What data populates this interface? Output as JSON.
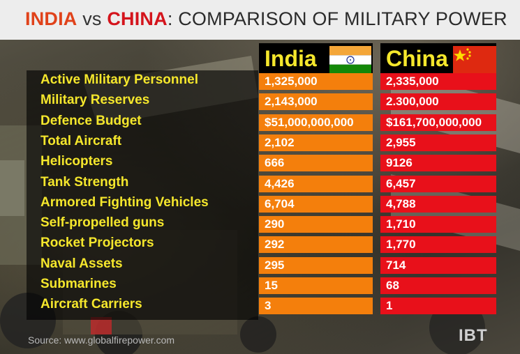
{
  "title": {
    "country1": "INDIA",
    "vs": " vs ",
    "country2": "CHINA",
    "colon": ":",
    "subtitle": " COMPARISON OF MILITARY POWER"
  },
  "columns": {
    "india": "India",
    "china": "China"
  },
  "colors": {
    "india_cell": "#f47f0c",
    "china_cell": "#e8101a",
    "label": "#f5e72c"
  },
  "rows": [
    {
      "label": "Active Military Personnel",
      "india": "1,325,000",
      "china": "2,335,000"
    },
    {
      "label": "Military Reserves",
      "india": "2,143,000",
      "china": "2.300,000"
    },
    {
      "label": "Defence Budget",
      "india": "$51,000,000,000",
      "china": "$161,700,000,000"
    },
    {
      "label": "Total Aircraft",
      "india": "2,102",
      "china": "2,955"
    },
    {
      "label": "Helicopters",
      "india": "666",
      "china": "9126"
    },
    {
      "label": "Tank Strength",
      "india": "4,426",
      "china": "6,457"
    },
    {
      "label": "Armored Fighting Vehicles",
      "india": "6,704",
      "china": "4,788"
    },
    {
      "label": "Self-propelled guns",
      "india": "290",
      "china": "1,710"
    },
    {
      "label": "Rocket Projectors",
      "india": "292",
      "china": "1,770"
    },
    {
      "label": "Naval Assets",
      "india": "295",
      "china": "714"
    },
    {
      "label": "Submarines",
      "india": "15",
      "china": "68"
    },
    {
      "label": "Aircraft Carriers",
      "india": "3",
      "china": "1"
    }
  ],
  "source": "Source: www.globalfirepower.com",
  "logo": "IBT"
}
